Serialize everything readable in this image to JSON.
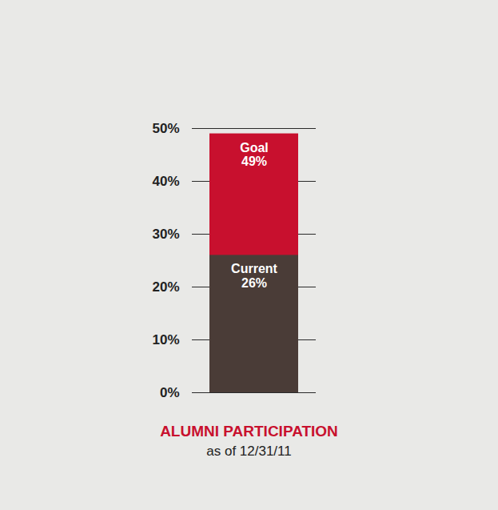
{
  "chart_data": {
    "type": "bar",
    "title": "ALUMNI PARTICIPATION",
    "subtitle": "as of 12/31/11",
    "categories": [
      null
    ],
    "series": [
      {
        "name": "Goal",
        "color": "#c8102e",
        "values": [
          49
        ],
        "value_labels": [
          "49%"
        ]
      },
      {
        "name": "Current",
        "color": "#4a3c37",
        "values": [
          26
        ],
        "value_labels": [
          "26%"
        ]
      }
    ],
    "stacked": false,
    "data_labels": true,
    "grid": true,
    "tick_labels": "y",
    "ylim": [
      0,
      50
    ],
    "yticks": [
      {
        "value": 0,
        "label": "0%"
      },
      {
        "value": 10,
        "label": "10%"
      },
      {
        "value": 20,
        "label": "20%"
      },
      {
        "value": 30,
        "label": "30%"
      },
      {
        "value": 40,
        "label": "40%"
      },
      {
        "value": 50,
        "label": "50%"
      }
    ]
  }
}
